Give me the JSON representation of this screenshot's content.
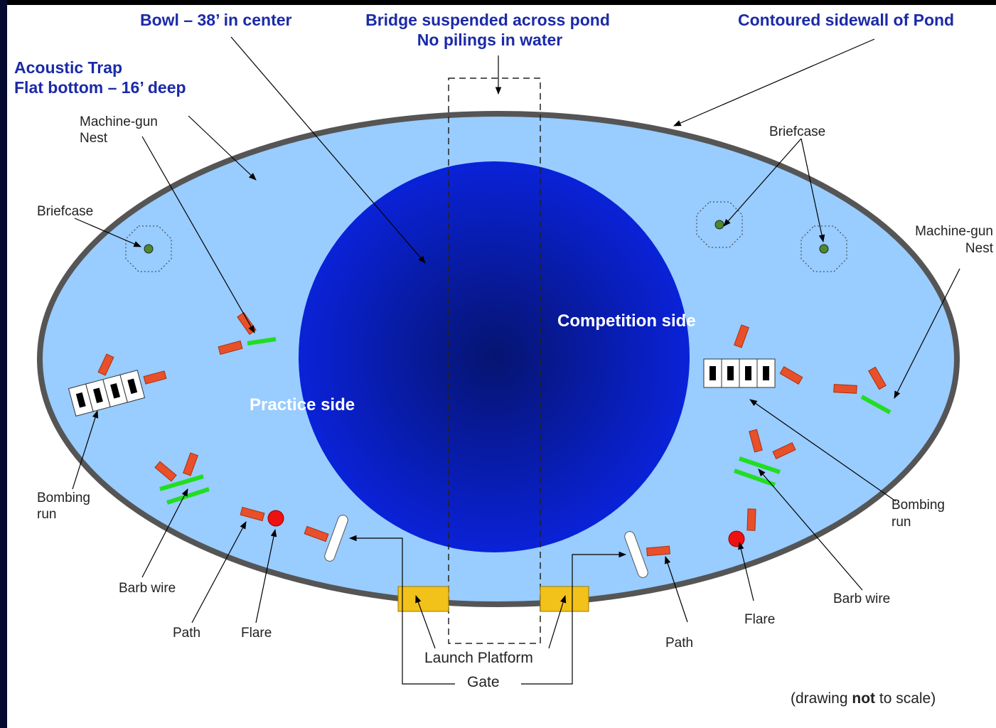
{
  "labels": {
    "bowl": "Bowl – 38’ in center",
    "bridge": [
      "Bridge suspended across pond",
      "No pilings in water"
    ],
    "sidewall": "Contoured sidewall of Pond",
    "acoustic_trap": [
      "Acoustic Trap",
      "Flat bottom – 16’ deep"
    ],
    "competition_side": "Competition side",
    "practice_side": "Practice side",
    "launch_platform": "Launch Platform",
    "gate": "Gate",
    "note": [
      "(drawing ",
      "not",
      " to scale)"
    ]
  },
  "practice": {
    "machine_gun_nest": [
      "Machine-gun",
      "Nest"
    ],
    "briefcase": "Briefcase",
    "bombing_run": [
      "Bombing",
      "run"
    ],
    "barb_wire": "Barb wire",
    "path": "Path",
    "flare": "Flare"
  },
  "competition": {
    "machine_gun_nest": [
      "Machine-gun",
      "Nest"
    ],
    "briefcase": "Briefcase",
    "bombing_run": [
      "Bombing",
      "run"
    ],
    "barb_wire": "Barb wire",
    "path": "Path",
    "flare": "Flare"
  }
}
